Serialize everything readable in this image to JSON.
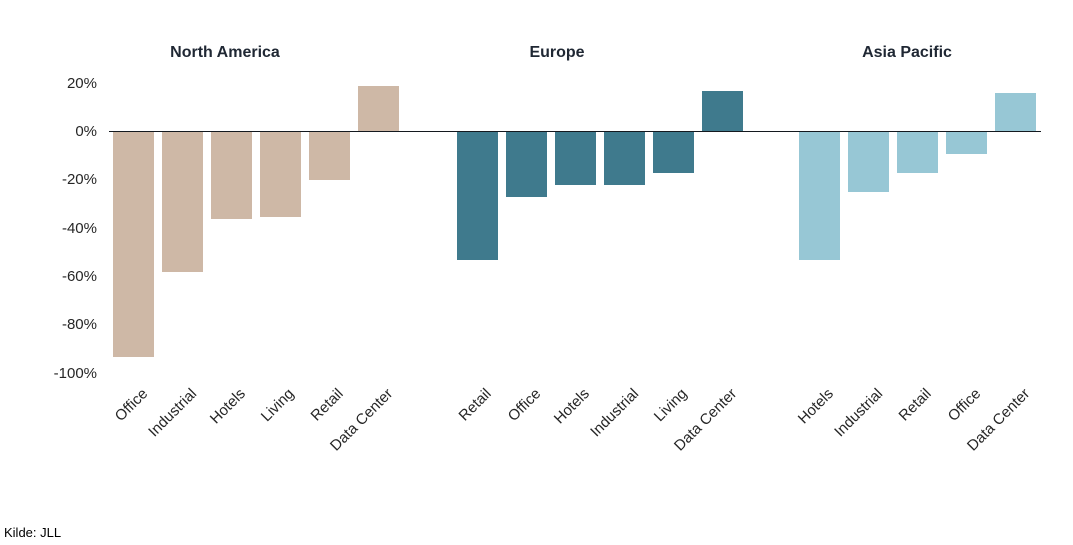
{
  "source_note": "Kilde: JLL",
  "colors": {
    "north_america_bar": "#ceb8a6",
    "europe_bar": "#3f7a8d",
    "asia_pacific_bar": "#97c7d5",
    "axis_line": "#14191f",
    "title_text": "#1f2733",
    "tick_text": "#262626"
  },
  "chart_data": {
    "type": "bar",
    "unit": "%",
    "ylim": [
      -100,
      20
    ],
    "grid": false,
    "legend": "none",
    "yticks": [
      {
        "value": 20,
        "label": "20%"
      },
      {
        "value": 0,
        "label": "0%"
      },
      {
        "value": -20,
        "label": "-20%"
      },
      {
        "value": -40,
        "label": "-40%"
      },
      {
        "value": -60,
        "label": "-60%"
      },
      {
        "value": -80,
        "label": "-80%"
      },
      {
        "value": -100,
        "label": "-100%"
      }
    ],
    "groups": [
      {
        "title": "North America",
        "color": "#ceb8a6",
        "categories": [
          "Office",
          "Industrial",
          "Hotels",
          "Living",
          "Retail",
          "Data Center"
        ],
        "values": [
          -93,
          -58,
          -36,
          -35,
          -20,
          19
        ]
      },
      {
        "title": "Europe",
        "color": "#3f7a8d",
        "categories": [
          "Retail",
          "Office",
          "Hotels",
          "Industrial",
          "Living",
          "Data Center"
        ],
        "values": [
          -53,
          -27,
          -22,
          -22,
          -17,
          17
        ]
      },
      {
        "title": "Asia Pacific",
        "color": "#97c7d5",
        "categories": [
          "Hotels",
          "Industrial",
          "Retail",
          "Office",
          "Data Center"
        ],
        "values": [
          -53,
          -25,
          -17,
          -9,
          16
        ]
      }
    ]
  }
}
